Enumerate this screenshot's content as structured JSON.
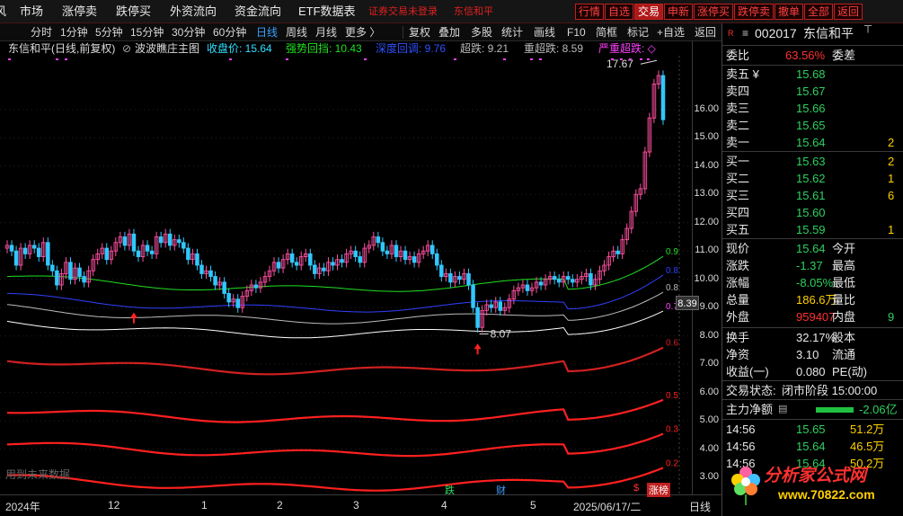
{
  "topbar": {
    "edge_char": "风",
    "menus": [
      "市场",
      "涨停卖",
      "跌停买",
      "外资流向",
      "资金流向",
      "ETF数据表"
    ],
    "notice": "证券交易未登录",
    "stock_name": "东信和平",
    "buttons": [
      "行情",
      "自选",
      "交易",
      "申新",
      "涨停买",
      "跌停卖",
      "撤单",
      "全部",
      "返回"
    ],
    "active_button": "交易"
  },
  "periods": {
    "items": [
      "分时",
      "1分钟",
      "5分钟",
      "15分钟",
      "30分钟",
      "60分钟",
      "日线",
      "周线",
      "月线",
      "更多 〉"
    ],
    "active": "日线",
    "tools": [
      "复权",
      "叠加",
      "多股",
      "统计",
      "画线",
      "F10",
      "简框",
      "标记",
      "+自选",
      "返回"
    ]
  },
  "info": {
    "title": "东信和平(日线,前复权)",
    "indicator": "波波瞧庄主图",
    "close_label": "收盘价: 15.64",
    "strong": "强势回挡: 10.43",
    "deep": "深度回调: 9.76",
    "over": "超跌: 9.21",
    "heavy": "重超跌: 8.59",
    "severe": "严重超跌: ◇"
  },
  "chart_labels": {
    "high": "17.67",
    "low": "8.07",
    "future_note": "用到未来数据",
    "band_tags": [
      "0.9",
      "0.8",
      "0.8",
      "0.7",
      "0.6",
      "0.5",
      "0.3",
      "0.2"
    ],
    "price_tag": "8.39",
    "markers": [
      "跌",
      "财",
      "$",
      "涨榜"
    ]
  },
  "yaxis": [
    "16.00",
    "15.00",
    "14.00",
    "13.00",
    "12.00",
    "11.00",
    "10.00",
    "9.00",
    "8.00",
    "7.00",
    "6.00",
    "5.00",
    "4.00",
    "3.00"
  ],
  "xaxis": [
    "2024年",
    "12",
    "1",
    "2",
    "3",
    "4",
    "5",
    "2025/06/17/二",
    "日线"
  ],
  "quote": {
    "code": "002017",
    "name": "东信和平",
    "ratio_label": "委比",
    "ratio": "63.56%",
    "diff_label": "委差",
    "asks": [
      {
        "label": "卖五 ¥",
        "price": "15.68",
        "vol": ""
      },
      {
        "label": "卖四",
        "price": "15.67",
        "vol": ""
      },
      {
        "label": "卖三",
        "price": "15.66",
        "vol": ""
      },
      {
        "label": "卖二",
        "price": "15.65",
        "vol": ""
      },
      {
        "label": "卖一",
        "price": "15.64",
        "vol": "2"
      }
    ],
    "bids": [
      {
        "label": "买一",
        "price": "15.63",
        "vol": "2"
      },
      {
        "label": "买二",
        "price": "15.62",
        "vol": "1"
      },
      {
        "label": "买三",
        "price": "15.61",
        "vol": "6"
      },
      {
        "label": "买四",
        "price": "15.60",
        "vol": ""
      },
      {
        "label": "买五",
        "price": "15.59",
        "vol": "1"
      }
    ],
    "stats": [
      {
        "l": "现价",
        "v": "15.64",
        "l2": "今开",
        "cls": "g"
      },
      {
        "l": "涨跌",
        "v": "-1.37",
        "l2": "最高",
        "cls": "g"
      },
      {
        "l": "涨幅",
        "v": "-8.05%",
        "l2": "最低",
        "cls": "g"
      },
      {
        "l": "总量",
        "v": "186.6万",
        "l2": "量比",
        "cls": "y"
      },
      {
        "l": "外盘",
        "v": "959407",
        "l2": "内盘",
        "cls": "r",
        "v3": "9"
      }
    ],
    "stats2": [
      {
        "l": "换手",
        "v": "32.17%",
        "l2": "股本"
      },
      {
        "l": "净资",
        "v": "3.10",
        "l2": "流通"
      },
      {
        "l": "收益(一)",
        "v": "0.080",
        "l2": "PE(动)"
      }
    ],
    "status_label": "交易状态:",
    "status": "闭市阶段 15:00:00",
    "netflow_label": "主力净额",
    "netflow": "-2.06亿",
    "ticks": [
      {
        "t": "14:56",
        "p": "15.65",
        "v": "51.2万"
      },
      {
        "t": "14:56",
        "p": "15.64",
        "v": "46.5万"
      },
      {
        "t": "14:56",
        "p": "15.64",
        "v": "50.2万"
      }
    ]
  },
  "watermark": {
    "line1": "分析家公式网",
    "line2": "www.70822.com"
  },
  "chart_data": {
    "type": "candlestick",
    "close_last": 15.64,
    "high": 17.67,
    "low": 8.07,
    "y_range": [
      2.4,
      17.9
    ],
    "levels": {
      "strong": 10.43,
      "deep": 9.76,
      "over": 9.21,
      "heavy": 8.59
    },
    "closes": [
      11.2,
      11.0,
      10.5,
      11.1,
      10.9,
      11.2,
      11.1,
      10.8,
      11.3,
      10.5,
      10.3,
      9.8,
      10.2,
      10.6,
      10.0,
      10.4,
      10.1,
      9.9,
      10.3,
      10.7,
      10.9,
      11.1,
      10.7,
      11.0,
      11.3,
      11.5,
      11.2,
      11.6,
      11.0,
      10.8,
      11.2,
      11.0,
      10.9,
      11.5,
      11.3,
      11.6,
      11.2,
      11.4,
      11.3,
      11.1,
      10.7,
      10.9,
      10.5,
      10.2,
      10.3,
      10.1,
      9.8,
      9.9,
      9.5,
      9.2,
      9.3,
      9.0,
      9.4,
      9.6,
      9.8,
      9.7,
      9.9,
      10.1,
      10.3,
      10.6,
      10.4,
      10.7,
      10.9,
      10.6,
      10.5,
      10.8,
      10.9,
      10.5,
      10.2,
      10.4,
      10.3,
      10.6,
      10.5,
      10.7,
      10.6,
      10.9,
      11.0,
      10.8,
      10.6,
      11.1,
      11.2,
      11.5,
      11.3,
      11.0,
      10.9,
      11.2,
      10.8,
      11.0,
      10.7,
      10.8,
      10.6,
      10.9,
      11.0,
      11.2,
      10.9,
      10.5,
      10.1,
      10.2,
      9.9,
      10.1,
      10.0,
      10.2,
      9.8,
      9.0,
      8.3,
      8.9,
      9.1,
      9.0,
      9.2,
      8.9,
      9.0,
      9.3,
      9.6,
      9.7,
      9.8,
      9.6,
      9.7,
      9.9,
      9.8,
      10.0,
      10.1,
      10.0,
      9.9,
      10.1,
      10.0,
      9.9,
      10.0,
      10.1,
      10.2,
      9.8,
      10.0,
      10.3,
      10.5,
      10.8,
      11.0,
      10.9,
      11.4,
      11.8,
      12.4,
      13.0,
      13.2,
      14.5,
      15.7,
      16.9,
      17.2,
      15.64
    ],
    "bands": [
      {
        "name": "0.9",
        "color": "#20e020",
        "start": 10.1,
        "dip": 9.6,
        "end": 10.43
      },
      {
        "name": "0.8",
        "color": "#3040ff",
        "start": 9.4,
        "dip": 8.9,
        "end": 9.76
      },
      {
        "name": "0.8",
        "color": "#bbbbbb",
        "start": 9.0,
        "dip": 8.5,
        "end": 9.21
      },
      {
        "name": "0.7",
        "color": "#ffffff",
        "start": 8.5,
        "dip": 8.0,
        "end": 8.59
      },
      {
        "name": "0.6",
        "color": "#d02020",
        "start": 7.2,
        "dip": 6.7,
        "end": 7.3
      },
      {
        "name": "0.5",
        "color": "#ff2020",
        "start": 5.4,
        "dip": 5.0,
        "end": 5.5
      },
      {
        "name": "0.3",
        "color": "#ff2020",
        "start": 4.2,
        "dip": 3.8,
        "end": 4.3
      },
      {
        "name": "0.2",
        "color": "#ff2020",
        "start": 3.0,
        "dip": 2.6,
        "end": 3.1
      }
    ]
  }
}
